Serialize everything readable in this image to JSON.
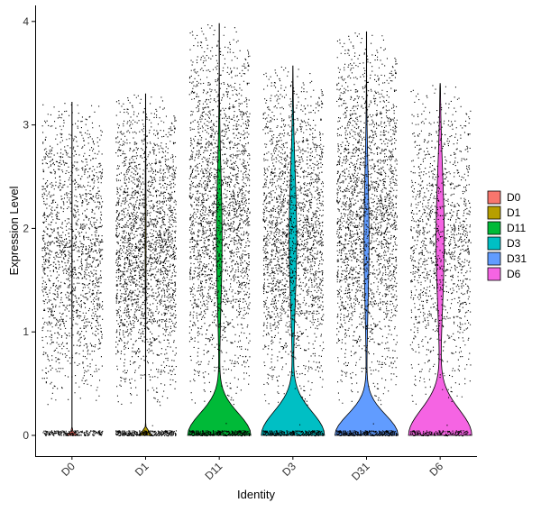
{
  "chart_data": {
    "type": "violin",
    "title": "",
    "xlabel": "Identity",
    "ylabel": "Expression Level",
    "categories": [
      "D0",
      "D1",
      "D11",
      "D3",
      "D31",
      "D6"
    ],
    "colors": [
      "#F8766D",
      "#B79F00",
      "#00BA38",
      "#00BFC4",
      "#619CFF",
      "#F564E3"
    ],
    "ylim": [
      -0.2,
      4.2
    ],
    "yticks": [
      0,
      1,
      2,
      3,
      4
    ],
    "grid": false,
    "legend": "right",
    "series": [
      {
        "name": "D0",
        "max": 3.22,
        "n_points": 1900,
        "peak_height": 0.03,
        "upper_width": 0.0
      },
      {
        "name": "D1",
        "max": 3.3,
        "n_points": 3900,
        "peak_height": 0.05,
        "upper_width": 0.015
      },
      {
        "name": "D11",
        "max": 3.98,
        "n_points": 5900,
        "peak_height": 0.3,
        "upper_width": 0.09
      },
      {
        "name": "D3",
        "max": 3.57,
        "n_points": 2500,
        "peak_height": 0.32,
        "upper_width": 0.12
      },
      {
        "name": "D31",
        "max": 3.9,
        "n_points": 7800,
        "peak_height": 0.28,
        "upper_width": 0.08
      },
      {
        "name": "D6",
        "max": 3.4,
        "n_points": 1500,
        "peak_height": 0.35,
        "upper_width": 0.13
      }
    ]
  }
}
